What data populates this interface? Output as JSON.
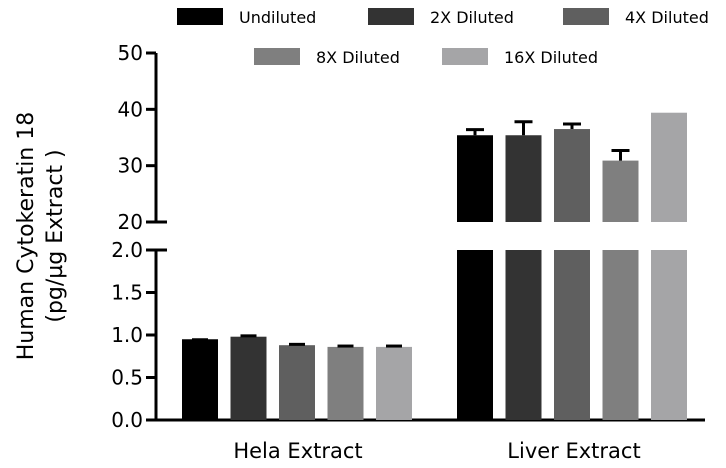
{
  "chart_data": {
    "type": "bar",
    "y_label_lines": [
      "Human Cytokeratin 18",
      "(pg/µg Extract )"
    ],
    "categories": [
      "Hela Extract",
      "Liver Extract"
    ],
    "series": [
      {
        "name": "Undiluted",
        "color": "#000000",
        "values": [
          0.95,
          35.4
        ],
        "errors": [
          0.0,
          1.0
        ]
      },
      {
        "name": "2X Diluted",
        "color": "#333333",
        "values": [
          0.98,
          35.4
        ],
        "errors": [
          0.01,
          2.4
        ]
      },
      {
        "name": "4X Diluted",
        "color": "#5f5f5f",
        "values": [
          0.88,
          36.5
        ],
        "errors": [
          0.01,
          0.9
        ]
      },
      {
        "name": "8X Diluted",
        "color": "#7f7f7f",
        "values": [
          0.86,
          30.9
        ],
        "errors": [
          0.01,
          1.8
        ]
      },
      {
        "name": "16X Diluted",
        "color": "#a5a5a7",
        "values": [
          0.86,
          39.4
        ],
        "errors": [
          0.01,
          0.0
        ]
      }
    ],
    "axis_break": true,
    "lower_segment": {
      "range": [
        0,
        2.0
      ],
      "ticks": [
        "0.0",
        "0.5",
        "1.0",
        "1.5",
        "2.0"
      ]
    },
    "upper_segment": {
      "range": [
        20,
        50
      ],
      "ticks": [
        "20",
        "30",
        "40",
        "50"
      ]
    },
    "legend_position": "top",
    "grid": false
  }
}
